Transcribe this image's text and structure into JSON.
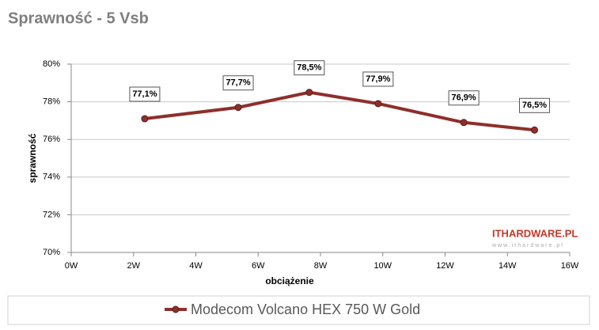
{
  "chart_data": {
    "type": "line",
    "title": "Sprawność - 5 Vsb",
    "x_label": "obciążenie",
    "y_label": "sprawność",
    "xlim": [
      0,
      16
    ],
    "xticks": [
      {
        "value": 0,
        "label": "0W"
      },
      {
        "value": 2,
        "label": "2W"
      },
      {
        "value": 4,
        "label": "4W"
      },
      {
        "value": 6,
        "label": "6W"
      },
      {
        "value": 8,
        "label": "8W"
      },
      {
        "value": 10,
        "label": "10W"
      },
      {
        "value": 12,
        "label": "12W"
      },
      {
        "value": 14,
        "label": "14W"
      },
      {
        "value": 16,
        "label": "16W"
      }
    ],
    "ylim": [
      70,
      80
    ],
    "yticks": [
      {
        "value": 70,
        "label": "70%"
      },
      {
        "value": 72,
        "label": "72%"
      },
      {
        "value": 74,
        "label": "74%"
      },
      {
        "value": 76,
        "label": "76%"
      },
      {
        "value": 78,
        "label": "78%"
      },
      {
        "value": 80,
        "label": "80%"
      }
    ],
    "grid": true,
    "legend": "bottom",
    "watermark": {
      "text": "ITHARDWARE.PL",
      "url": "www.ithardware.pl"
    },
    "x": [
      2.36,
      5.36,
      7.64,
      9.85,
      12.6,
      14.87
    ],
    "series": [
      {
        "name": "Modecom Volcano HEX 750 W Gold",
        "color": "#8e2f2b",
        "values": [
          77.1,
          77.7,
          78.5,
          77.9,
          76.9,
          76.5
        ],
        "value_labels": [
          "77,1%",
          "77,7%",
          "78,5%",
          "77,9%",
          "76,9%",
          "76,5%"
        ]
      }
    ]
  }
}
